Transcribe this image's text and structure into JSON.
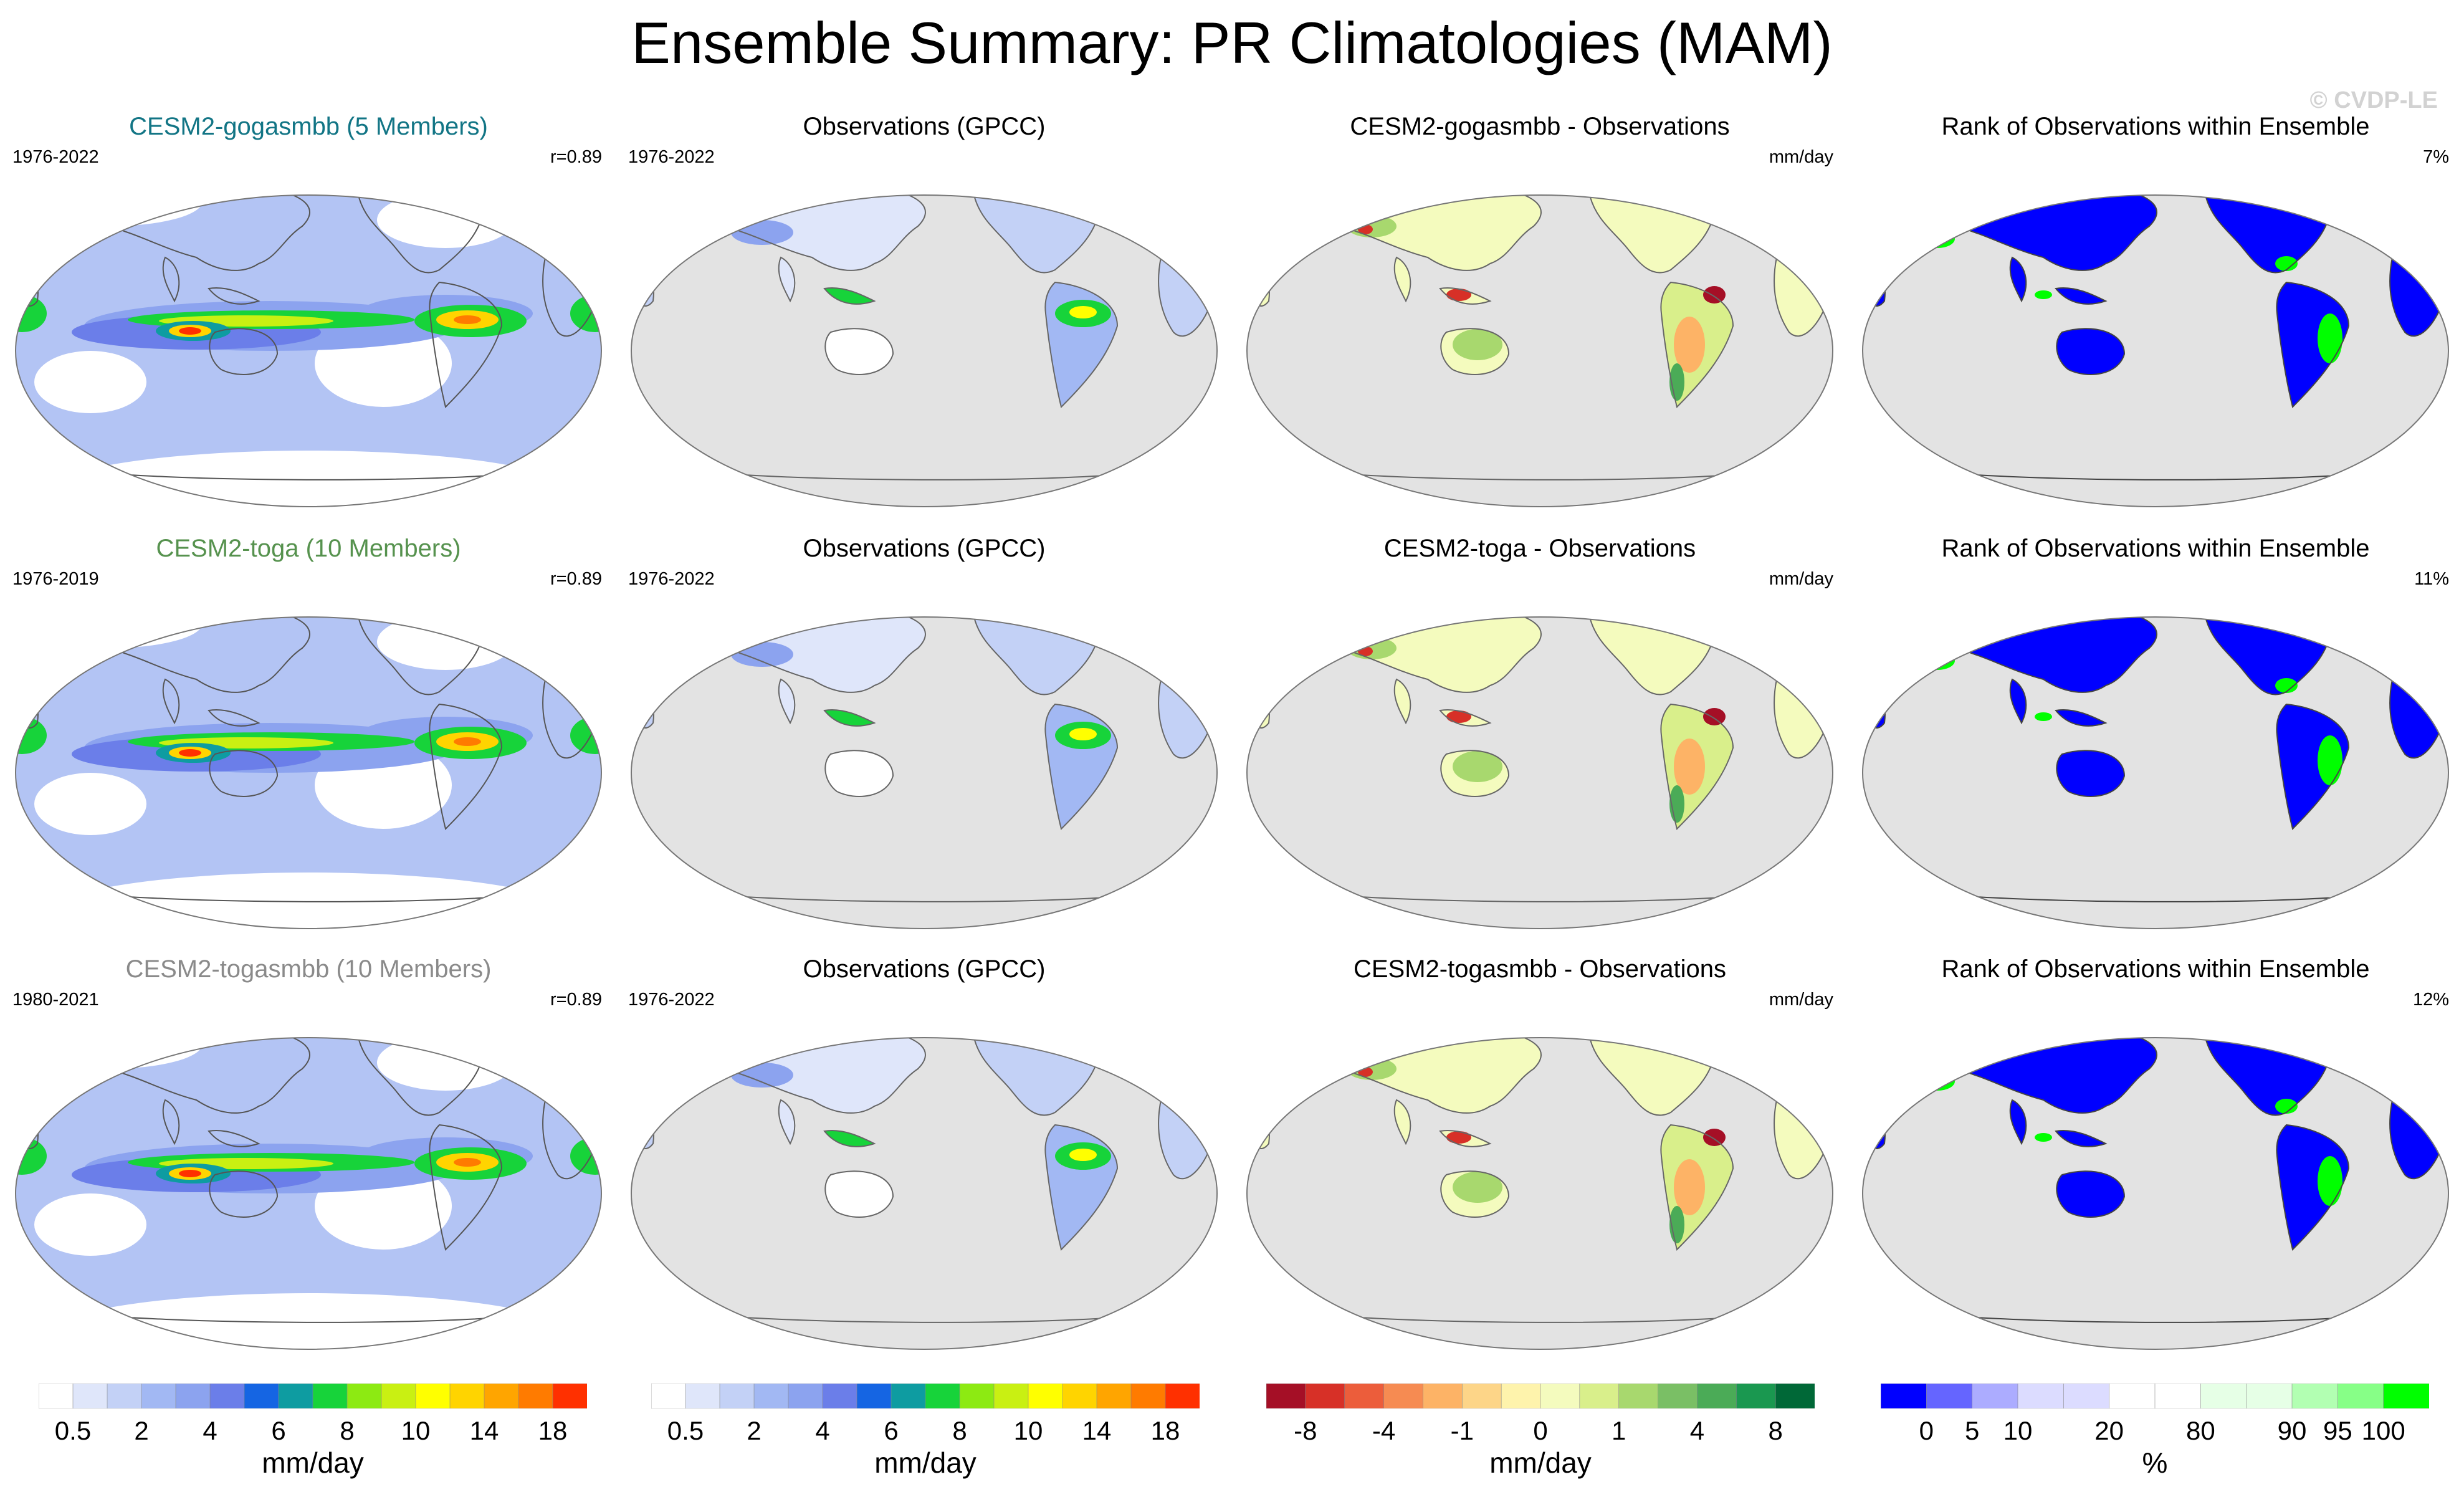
{
  "title": "Ensemble Summary: PR Climatologies (MAM)",
  "watermark": "© CVDP-LE",
  "rows": [
    {
      "model": {
        "title": "CESM2-gogasmbb (5 Members)",
        "title_color": "#127585",
        "years": "1976-2022",
        "stat": "r=0.89"
      },
      "obs": {
        "title": "Observations (GPCC)",
        "years": "1976-2022"
      },
      "diff": {
        "title": "CESM2-gogasmbb - Observations",
        "units": "mm/day"
      },
      "rank": {
        "title": "Rank of Observations within Ensemble",
        "pct": "7%"
      }
    },
    {
      "model": {
        "title": "CESM2-toga (10 Members)",
        "title_color": "#56924e",
        "years": "1976-2019",
        "stat": "r=0.89"
      },
      "obs": {
        "title": "Observations (GPCC)",
        "years": "1976-2022"
      },
      "diff": {
        "title": "CESM2-toga - Observations",
        "units": "mm/day"
      },
      "rank": {
        "title": "Rank of Observations within Ensemble",
        "pct": "11%"
      }
    },
    {
      "model": {
        "title": "CESM2-togasmbb (10 Members)",
        "title_color": "#8a8a8a",
        "years": "1980-2021",
        "stat": "r=0.89"
      },
      "obs": {
        "title": "Observations (GPCC)",
        "years": "1976-2022"
      },
      "diff": {
        "title": "CESM2-togasmbb - Observations",
        "units": "mm/day"
      },
      "rank": {
        "title": "Rank of Observations within Ensemble",
        "pct": "12%"
      }
    }
  ],
  "colorbars": {
    "pr": {
      "units": "mm/day",
      "colors": [
        "#ffffff",
        "#dfe6fa",
        "#c3d1f6",
        "#a2b8f3",
        "#8ca3ef",
        "#6b7ee9",
        "#1565e3",
        "#0e9ca1",
        "#17d33a",
        "#8dea12",
        "#c9f012",
        "#ffff00",
        "#ffd400",
        "#ffa500",
        "#ff7b00",
        "#ff3000"
      ],
      "labels": [
        "0.5",
        "2",
        "4",
        "6",
        "8",
        "10",
        "14",
        "18"
      ]
    },
    "diff": {
      "units": "mm/day",
      "colors": [
        "#a50f26",
        "#d73027",
        "#ec5d3b",
        "#f68b52",
        "#fdb366",
        "#fdd588",
        "#fef3ac",
        "#f4fbbe",
        "#d9ef8b",
        "#a8d86e",
        "#7abf65",
        "#4bab57",
        "#1a9850",
        "#006837"
      ],
      "labels": [
        "-8",
        "-4",
        "-1",
        "0",
        "1",
        "4",
        "8"
      ]
    },
    "rank": {
      "units": "%",
      "colors": [
        "#0000ff",
        "#6565ff",
        "#acacff",
        "#dcdcff",
        "#dcdcff",
        "#ffffff",
        "#ffffff",
        "#e6ffe6",
        "#e6ffe6",
        "#b2ffb2",
        "#87ff87",
        "#00ff00"
      ],
      "labels": [
        "0",
        "5",
        "10",
        "20",
        "80",
        "90",
        "95",
        "100"
      ]
    }
  },
  "chart_data": [
    {
      "type": "heatmap",
      "panel": "model-mean",
      "units": "mm/day",
      "contour_levels": [
        0.5,
        1,
        2,
        3,
        4,
        5,
        6,
        7,
        8,
        9,
        10,
        12,
        14,
        16,
        18
      ]
    },
    {
      "type": "heatmap",
      "panel": "observations",
      "units": "mm/day",
      "contour_levels": [
        0.5,
        1,
        2,
        3,
        4,
        5,
        6,
        7,
        8,
        9,
        10,
        12,
        14,
        16,
        18
      ]
    },
    {
      "type": "heatmap",
      "panel": "difference",
      "units": "mm/day",
      "contour_levels": [
        -8,
        -6,
        -4,
        -2,
        -1,
        -0.5,
        0,
        0.5,
        1,
        2,
        4,
        6,
        8
      ]
    },
    {
      "type": "heatmap",
      "panel": "rank",
      "units": "%",
      "contour_levels": [
        0,
        5,
        10,
        20,
        80,
        90,
        95,
        100
      ]
    }
  ]
}
